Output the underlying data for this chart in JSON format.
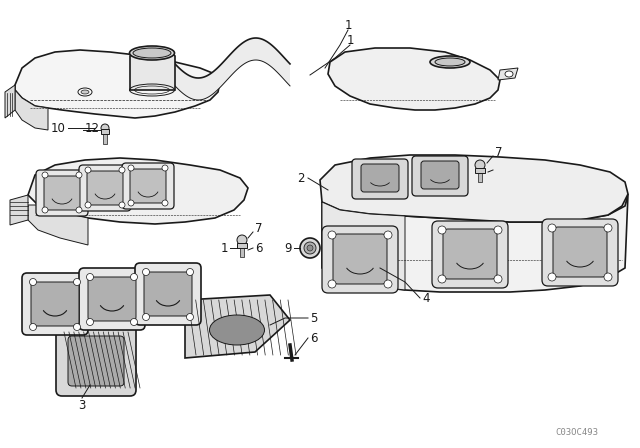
{
  "background_color": "#ffffff",
  "line_color": "#1a1a1a",
  "fig_width": 6.4,
  "fig_height": 4.48,
  "dpi": 100,
  "watermark": "C03OC493",
  "label_fontsize": 8.5
}
